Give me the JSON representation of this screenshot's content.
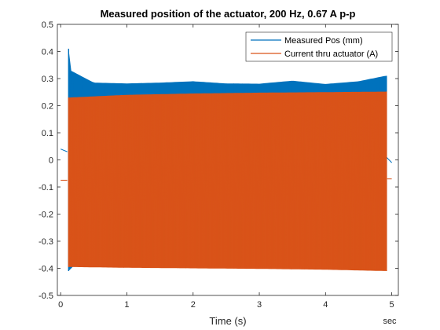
{
  "chart_data": {
    "type": "line",
    "title": "Measured position of the actuator, 200 Hz, 0.67 A p-p",
    "xlabel": "Time (s)",
    "x_unit_label": "sec",
    "ylabel": "",
    "xlim": [
      -0.05,
      5.1
    ],
    "ylim": [
      -0.5,
      0.5
    ],
    "x_ticks": [
      0,
      1,
      2,
      3,
      4,
      5
    ],
    "y_ticks": [
      -0.5,
      -0.4,
      -0.3,
      -0.2,
      -0.1,
      0,
      0.1,
      0.2,
      0.3,
      0.4,
      0.5
    ],
    "x_tick_labels": [
      "0",
      "1",
      "2",
      "3",
      "4",
      "5"
    ],
    "y_tick_labels": [
      "-0.5",
      "-0.4",
      "-0.3",
      "-0.2",
      "-0.1",
      "0",
      "0.1",
      "0.2",
      "0.3",
      "0.4",
      "0.5"
    ],
    "grid": false,
    "legend_position": "top-right",
    "series": [
      {
        "name": "Measured Pos (mm)",
        "color": "#0072BD",
        "kind": "oscillation-envelope",
        "baseline": [
          [
            0.0,
            0.04
          ],
          [
            0.1,
            0.03
          ]
        ],
        "baseline_end": [
          [
            4.92,
            0.01
          ],
          [
            5.0,
            -0.01
          ]
        ],
        "active_range": [
          0.12,
          4.92
        ],
        "upper_envelope": [
          [
            0.12,
            0.41
          ],
          [
            0.15,
            0.33
          ],
          [
            0.5,
            0.285
          ],
          [
            1.0,
            0.282
          ],
          [
            1.5,
            0.285
          ],
          [
            2.0,
            0.29
          ],
          [
            2.5,
            0.282
          ],
          [
            3.0,
            0.281
          ],
          [
            3.5,
            0.292
          ],
          [
            4.0,
            0.28
          ],
          [
            4.5,
            0.29
          ],
          [
            4.9,
            0.31
          ]
        ],
        "lower_envelope": [
          [
            0.12,
            -0.41
          ],
          [
            0.2,
            -0.39
          ],
          [
            1.0,
            -0.38
          ],
          [
            2.0,
            -0.38
          ],
          [
            3.0,
            -0.38
          ],
          [
            4.0,
            -0.39
          ],
          [
            4.9,
            -0.4
          ]
        ]
      },
      {
        "name": "Current thru actuator (A)",
        "color": "#D95319",
        "kind": "oscillation-envelope",
        "baseline": [
          [
            0.0,
            -0.075
          ],
          [
            0.1,
            -0.075
          ]
        ],
        "baseline_end": [
          [
            4.93,
            -0.07
          ],
          [
            5.0,
            -0.07
          ]
        ],
        "active_range": [
          0.12,
          4.92
        ],
        "upper_envelope": [
          [
            0.12,
            0.23
          ],
          [
            1.0,
            0.24
          ],
          [
            2.0,
            0.245
          ],
          [
            3.0,
            0.248
          ],
          [
            4.0,
            0.25
          ],
          [
            4.9,
            0.252
          ]
        ],
        "lower_envelope": [
          [
            0.12,
            -0.395
          ],
          [
            1.0,
            -0.398
          ],
          [
            2.0,
            -0.4
          ],
          [
            3.0,
            -0.402
          ],
          [
            4.0,
            -0.405
          ],
          [
            4.9,
            -0.41
          ]
        ]
      }
    ]
  }
}
